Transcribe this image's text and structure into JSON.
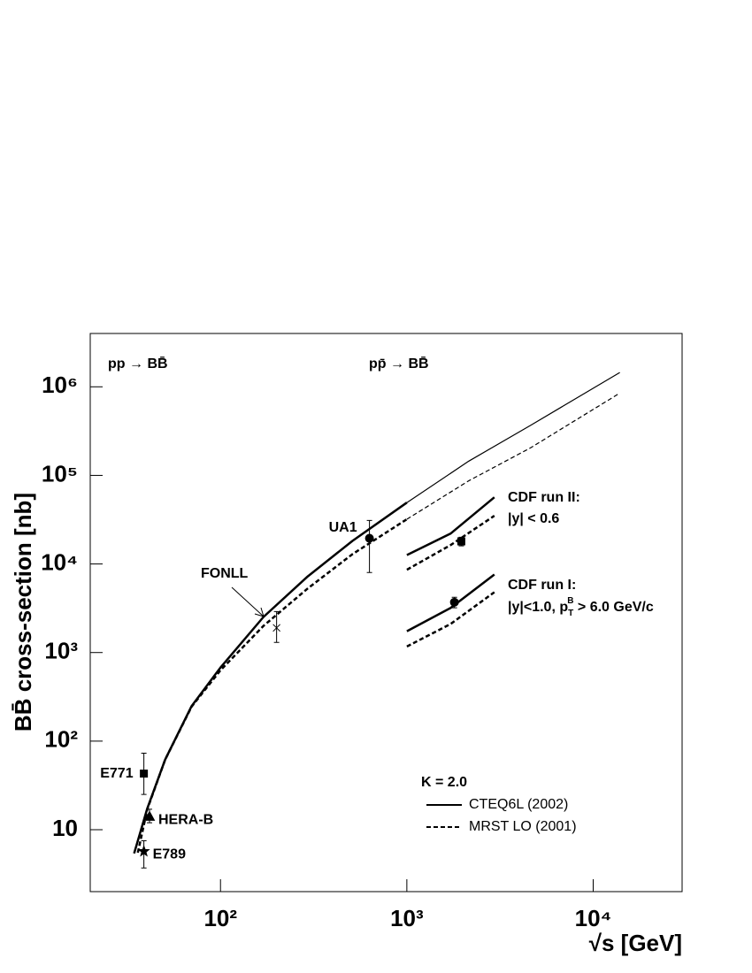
{
  "chart_data": {
    "type": "line",
    "x_label": "√s [GeV]",
    "y_label": "BB̄ cross-section [nb]",
    "xscale": "log",
    "yscale": "log",
    "xlim": [
      20,
      30000
    ],
    "ylim": [
      2,
      4000000
    ],
    "xticks": [
      {
        "value": 100,
        "label": "10²"
      },
      {
        "value": 1000,
        "label": "10³"
      },
      {
        "value": 10000,
        "label": "10⁴"
      }
    ],
    "yticks": [
      10,
      {
        "value": 100,
        "label": "10²"
      },
      {
        "value": 1000,
        "label": "10³"
      },
      {
        "value": 10000,
        "label": "10⁴"
      },
      {
        "value": 100000,
        "label": "10⁵"
      },
      {
        "value": 1000000,
        "label": "10⁶"
      }
    ],
    "legend_title": "K = 2.0",
    "legend_position": "bottom-right",
    "curves": [
      {
        "name": "CTEQ6L (2002)",
        "color": "#000000",
        "dash": false,
        "width": 2.5,
        "x": [
          34.4,
          40.5,
          50.5,
          70,
          100,
          170,
          294,
          511,
          1000
        ],
        "values": [
          5.4,
          17.4,
          62,
          249,
          676,
          2520,
          7240,
          18200,
          49300
        ]
      },
      {
        "name": "MRST LO (2001)",
        "color": "#000000",
        "dash": true,
        "width": 2.5,
        "x": [
          36,
          40.5,
          50.5,
          70,
          100,
          170,
          294,
          511,
          1000
        ],
        "values": [
          5.5,
          17,
          62,
          245,
          630,
          2000,
          5300,
          12900,
          32000
        ]
      },
      {
        "color": "#000000",
        "dash": false,
        "width": 1.2,
        "x": [
          1000,
          2150,
          4600,
          13900
        ],
        "values": [
          49300,
          145000,
          366000,
          1450000
        ]
      },
      {
        "color": "#000000",
        "dash": true,
        "width": 1.2,
        "x": [
          1000,
          2150,
          4600,
          13900
        ],
        "values": [
          32000,
          87000,
          204000,
          850000
        ]
      },
      {
        "color": "#000000",
        "dash": false,
        "width": 2.5,
        "x": [
          1000,
          1715,
          2950
        ],
        "values": [
          12600,
          22000,
          56600
        ]
      },
      {
        "color": "#000000",
        "dash": true,
        "width": 2.5,
        "x": [
          1000,
          1715,
          2950
        ],
        "values": [
          8600,
          16300,
          35000
        ]
      },
      {
        "color": "#000000",
        "dash": false,
        "width": 2.5,
        "x": [
          1000,
          1715,
          2950
        ],
        "values": [
          1740,
          3180,
          7600
        ]
      },
      {
        "color": "#000000",
        "dash": true,
        "width": 2.5,
        "x": [
          1000,
          1715,
          2950
        ],
        "values": [
          1170,
          2100,
          4800
        ]
      }
    ],
    "points": [
      {
        "name": "E771",
        "x": 38.8,
        "value": 43,
        "low": 25,
        "high": 73,
        "marker": "square"
      },
      {
        "name": "HERA-B",
        "x": 41.6,
        "value": 14,
        "low": 12,
        "high": 17,
        "marker": "triangle"
      },
      {
        "name": "E789",
        "x": 38.8,
        "value": 5.7,
        "low": 3.7,
        "high": 7.5,
        "marker": "star"
      },
      {
        "x": 200,
        "value": 1900,
        "low": 1300,
        "high": 2900,
        "marker": "cross"
      },
      {
        "name": "UA1",
        "x": 630,
        "value": 19500,
        "low": 8000,
        "high": 31000,
        "marker": "circle"
      },
      {
        "x": 1960,
        "value": 18000,
        "low": 16000,
        "high": 20000,
        "marker": "square"
      },
      {
        "x": 1800,
        "value": 3700,
        "low": 3200,
        "high": 4200,
        "marker": "circle"
      }
    ],
    "annotations": {
      "pp": "pp → BB̄",
      "ppbar": "pp̄ → BB̄",
      "fonll": "FONLL",
      "cdf2": "CDF run II:",
      "cdf2_cut": "|y| < 0.6",
      "cdf1": "CDF run I:",
      "cdf1_cut": {
        "text": "|y|<1.0, p",
        "sub": "T",
        "sup": "B",
        "rest": " > 6.0 GeV/c"
      }
    }
  }
}
